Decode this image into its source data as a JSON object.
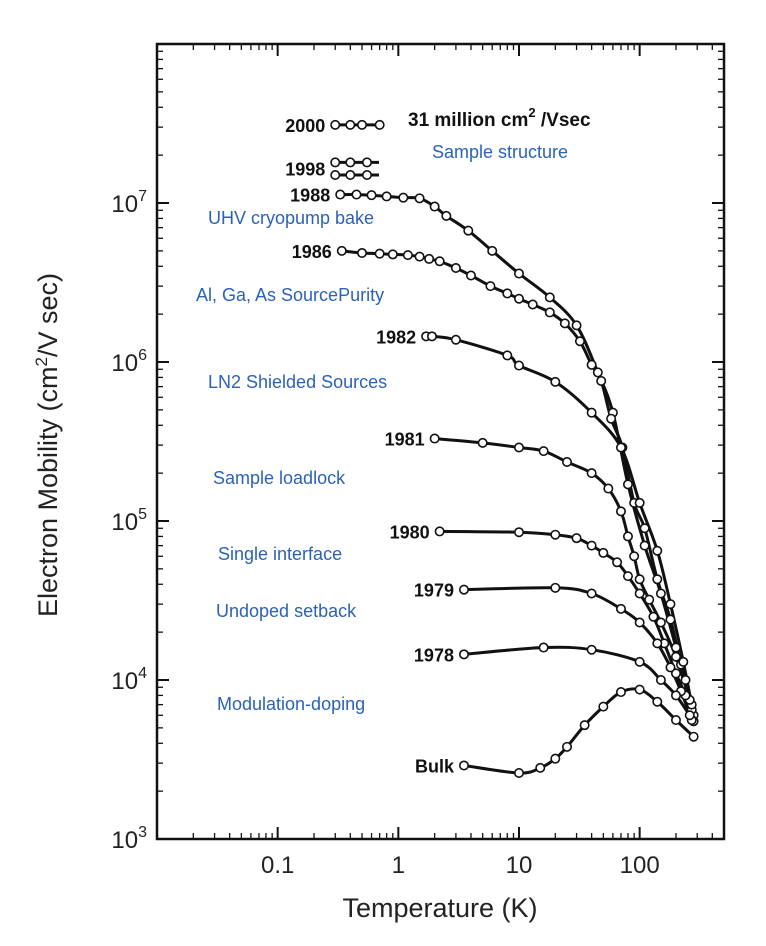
{
  "chart_data": {
    "type": "line",
    "title": "",
    "xlabel": "Temperature (K)",
    "ylabel_parts": {
      "pre": "Electron Mobility (cm",
      "sup": "2",
      "post": "/V sec)"
    },
    "x_scale": "log",
    "y_scale": "log",
    "xlim": [
      0.01,
      500
    ],
    "ylim": [
      1000,
      100000000
    ],
    "x_ticks": [
      {
        "value": 0.1,
        "label": "0.1"
      },
      {
        "value": 1,
        "label": "1"
      },
      {
        "value": 10,
        "label": "10"
      },
      {
        "value": 100,
        "label": "100"
      }
    ],
    "y_ticks": [
      {
        "value": 1000,
        "base": "10",
        "exp": "3"
      },
      {
        "value": 10000,
        "base": "10",
        "exp": "4"
      },
      {
        "value": 100000,
        "base": "10",
        "exp": "5"
      },
      {
        "value": 1000000,
        "base": "10",
        "exp": "6"
      },
      {
        "value": 10000000,
        "base": "10",
        "exp": "7"
      }
    ],
    "grid": false,
    "record_annotation": {
      "pre": "31 million cm",
      "sup": "2",
      "post": " /Vsec"
    },
    "series": [
      {
        "name": "2000",
        "points": [
          [
            0.3,
            31000000
          ],
          [
            0.4,
            31000000
          ],
          [
            0.5,
            31000000
          ],
          [
            0.7,
            31000000
          ]
        ]
      },
      {
        "name": "1998",
        "points": [
          [
            0.3,
            18000000
          ],
          [
            0.4,
            18000000
          ],
          [
            0.55,
            18000000
          ],
          [
            0.3,
            15000000
          ],
          [
            0.4,
            15000000
          ],
          [
            0.55,
            15000000
          ]
        ]
      },
      {
        "name": "1988",
        "points": [
          [
            0.33,
            11300000
          ],
          [
            0.45,
            11300000
          ],
          [
            0.6,
            11200000
          ],
          [
            0.8,
            11000000
          ],
          [
            1.1,
            10800000
          ],
          [
            1.5,
            10700000
          ],
          [
            2.0,
            9500000
          ],
          [
            2.5,
            8300000
          ],
          [
            3.8,
            6700000
          ],
          [
            6.0,
            5000000
          ],
          [
            10,
            3600000
          ],
          [
            18,
            2550000
          ],
          [
            30,
            1700000
          ],
          [
            45,
            860000
          ],
          [
            60,
            480000
          ],
          [
            80,
            170000
          ],
          [
            110,
            70000
          ],
          [
            150,
            35000
          ],
          [
            200,
            16000
          ],
          [
            240,
            10000
          ],
          [
            280,
            6000
          ]
        ]
      },
      {
        "name": "1986",
        "points": [
          [
            0.34,
            5000000
          ],
          [
            0.5,
            4850000
          ],
          [
            0.7,
            4800000
          ],
          [
            0.9,
            4750000
          ],
          [
            1.2,
            4700000
          ],
          [
            1.5,
            4600000
          ],
          [
            1.8,
            4450000
          ],
          [
            2.2,
            4300000
          ],
          [
            3.0,
            3900000
          ],
          [
            4.0,
            3500000
          ],
          [
            5.8,
            3000000
          ],
          [
            8.0,
            2700000
          ],
          [
            10,
            2500000
          ],
          [
            13,
            2300000
          ],
          [
            18,
            2050000
          ],
          [
            24,
            1750000
          ],
          [
            32,
            1350000
          ],
          [
            40,
            960000
          ],
          [
            48,
            760000
          ],
          [
            58,
            440000
          ],
          [
            72,
            290000
          ],
          [
            90,
            130000
          ],
          [
            110,
            90000
          ],
          [
            140,
            43000
          ],
          [
            180,
            24000
          ],
          [
            220,
            12500
          ],
          [
            270,
            6500
          ]
        ]
      },
      {
        "name": "1982",
        "points": [
          [
            1.7,
            1450000
          ],
          [
            1.9,
            1450000
          ],
          [
            3.0,
            1380000
          ],
          [
            8.0,
            1100000
          ],
          [
            10,
            950000
          ],
          [
            20,
            750000
          ],
          [
            40,
            480000
          ],
          [
            70,
            290000
          ],
          [
            100,
            130000
          ],
          [
            140,
            65000
          ],
          [
            180,
            30000
          ],
          [
            230,
            13000
          ],
          [
            270,
            7000
          ]
        ]
      },
      {
        "name": "1981",
        "points": [
          [
            2.0,
            330000
          ],
          [
            5.0,
            310000
          ],
          [
            10,
            290000
          ],
          [
            16,
            275000
          ],
          [
            25,
            235000
          ],
          [
            40,
            200000
          ],
          [
            55,
            160000
          ],
          [
            70,
            115000
          ],
          [
            80,
            80000
          ],
          [
            90,
            60000
          ],
          [
            100,
            43000
          ],
          [
            120,
            32000
          ],
          [
            150,
            23000
          ],
          [
            200,
            14000
          ],
          [
            260,
            7500
          ]
        ]
      },
      {
        "name": "1980",
        "points": [
          [
            2.2,
            86000
          ],
          [
            10,
            85000
          ],
          [
            20,
            82000
          ],
          [
            30,
            78000
          ],
          [
            40,
            70000
          ],
          [
            50,
            63000
          ],
          [
            65,
            55000
          ],
          [
            80,
            45000
          ],
          [
            100,
            35000
          ],
          [
            130,
            25000
          ],
          [
            160,
            17000
          ],
          [
            200,
            11000
          ],
          [
            240,
            8000
          ],
          [
            280,
            5500
          ]
        ]
      },
      {
        "name": "1979",
        "points": [
          [
            3.5,
            37000
          ],
          [
            20,
            38000
          ],
          [
            40,
            35000
          ],
          [
            70,
            28000
          ],
          [
            100,
            23000
          ],
          [
            140,
            17000
          ],
          [
            180,
            12000
          ],
          [
            220,
            8500
          ],
          [
            270,
            5600
          ]
        ]
      },
      {
        "name": "1978",
        "points": [
          [
            3.5,
            14500
          ],
          [
            16,
            16000
          ],
          [
            40,
            15500
          ],
          [
            100,
            13000
          ],
          [
            150,
            10000
          ],
          [
            200,
            8000
          ],
          [
            260,
            6000
          ]
        ]
      },
      {
        "name": "Bulk",
        "points": [
          [
            3.5,
            2900
          ],
          [
            10,
            2600
          ],
          [
            15,
            2800
          ],
          [
            20,
            3200
          ],
          [
            25,
            3800
          ],
          [
            35,
            5200
          ],
          [
            50,
            6800
          ],
          [
            70,
            8400
          ],
          [
            100,
            8700
          ],
          [
            140,
            7300
          ],
          [
            200,
            5600
          ],
          [
            280,
            4400
          ]
        ]
      }
    ],
    "annotations": [
      {
        "text": "Sample structure",
        "color": "#2b62b8"
      },
      {
        "text": "UHV cryopump bake",
        "color": "#2b62b8"
      },
      {
        "text": "Al, Ga, As SourcePurity",
        "color": "#2b62b8"
      },
      {
        "text": "LN2 Shielded Sources",
        "color": "#2b62b8"
      },
      {
        "text": "Sample loadlock",
        "color": "#2b62b8"
      },
      {
        "text": "Single interface",
        "color": "#2b62b8"
      },
      {
        "text": "Undoped setback",
        "color": "#2b62b8"
      },
      {
        "text": "Modulation-doping",
        "color": "#2b62b8"
      }
    ]
  }
}
